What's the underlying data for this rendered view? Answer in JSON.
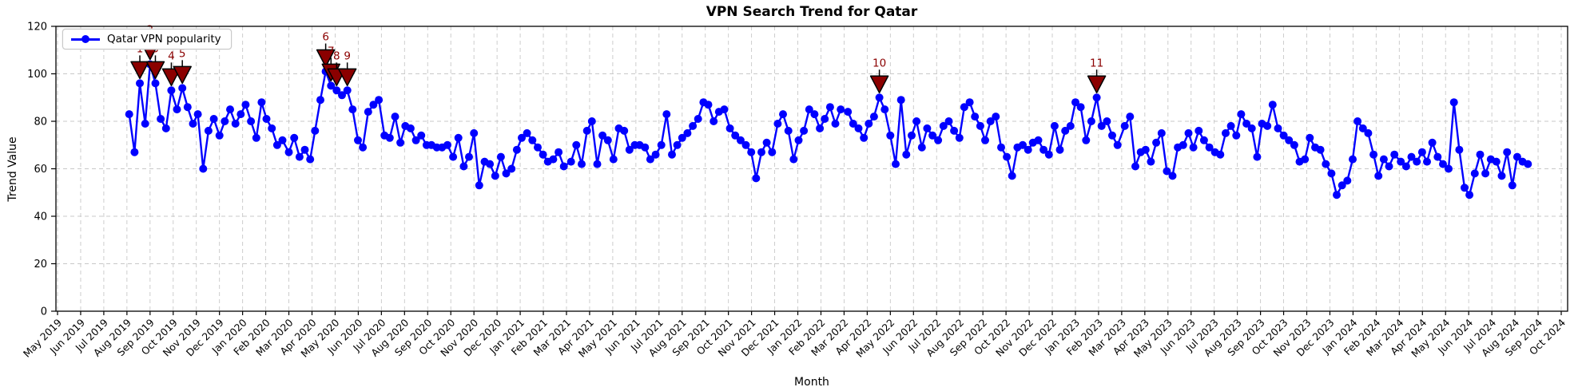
{
  "figure": {
    "title": "VPN Search Trend for Qatar",
    "xlabel": "Month",
    "ylabel": "Trend Value",
    "legend_label": "Qatar VPN popularity"
  },
  "chart_data": {
    "type": "line",
    "title": "VPN Search Trend for Qatar",
    "xlabel": "Month",
    "ylabel": "Trend Value",
    "ylim": [
      0,
      120
    ],
    "y_ticks": [
      0,
      20,
      40,
      60,
      80,
      100,
      120
    ],
    "grid": true,
    "legend_position": "upper-left",
    "x_tick_labels": [
      "May 2019",
      "Jun 2019",
      "Jul 2019",
      "Aug 2019",
      "Sep 2019",
      "Oct 2019",
      "Nov 2019",
      "Dec 2019",
      "Jan 2020",
      "Feb 2020",
      "Mar 2020",
      "Apr 2020",
      "May 2020",
      "Jun 2020",
      "Jul 2020",
      "Aug 2020",
      "Sep 2020",
      "Oct 2020",
      "Nov 2020",
      "Dec 2020",
      "Jan 2021",
      "Feb 2021",
      "Mar 2021",
      "Apr 2021",
      "May 2021",
      "Jun 2021",
      "Jul 2021",
      "Aug 2021",
      "Sep 2021",
      "Oct 2021",
      "Nov 2021",
      "Dec 2021",
      "Jan 2022",
      "Feb 2022",
      "Mar 2022",
      "Apr 2022",
      "May 2022",
      "Jun 2022",
      "Jul 2022",
      "Aug 2022",
      "Sep 2022",
      "Oct 2022",
      "Nov 2022",
      "Dec 2022",
      "Jan 2023",
      "Feb 2023",
      "Mar 2023",
      "Apr 2023",
      "May 2023",
      "Jun 2023",
      "Jul 2023",
      "Aug 2023",
      "Sep 2023",
      "Oct 2023",
      "Nov 2023",
      "Dec 2023",
      "Jan 2024",
      "Feb 2024",
      "Mar 2024",
      "Apr 2024",
      "May 2024",
      "Jun 2024",
      "Jul 2024",
      "Aug 2024",
      "Sep 2024",
      "Oct 2024"
    ],
    "series": [
      {
        "name": "Qatar VPN popularity",
        "color": "#0000ff",
        "marker": "circle",
        "start_week": "2019-08-04",
        "interval_days": 7,
        "values": [
          83,
          67,
          96,
          79,
          104,
          96,
          81,
          77,
          93,
          85,
          94,
          86,
          79,
          83,
          60,
          76,
          81,
          74,
          80,
          85,
          79,
          83,
          87,
          80,
          73,
          88,
          81,
          77,
          70,
          72,
          67,
          73,
          65,
          68,
          64,
          76,
          89,
          101,
          95,
          93,
          91,
          93,
          85,
          72,
          69,
          84,
          87,
          89,
          74,
          73,
          82,
          71,
          78,
          77,
          72,
          74,
          70,
          70,
          69,
          69,
          70,
          65,
          73,
          61,
          65,
          75,
          53,
          63,
          62,
          57,
          65,
          58,
          60,
          68,
          73,
          75,
          72,
          69,
          66,
          63,
          64,
          67,
          61,
          63,
          70,
          62,
          76,
          80,
          62,
          74,
          72,
          64,
          77,
          76,
          68,
          70,
          70,
          69,
          64,
          66,
          70,
          83,
          66,
          70,
          73,
          75,
          78,
          81,
          88,
          87,
          80,
          84,
          85,
          77,
          74,
          72,
          70,
          67,
          56,
          67,
          71,
          67,
          79,
          83,
          76,
          64,
          72,
          76,
          85,
          83,
          77,
          81,
          86,
          79,
          85,
          84,
          79,
          77,
          73,
          79,
          82,
          90,
          85,
          74,
          62,
          89,
          66,
          74,
          80,
          69,
          77,
          74,
          72,
          78,
          80,
          76,
          73,
          86,
          88,
          82,
          78,
          72,
          80,
          82,
          69,
          65,
          57,
          69,
          70,
          68,
          71,
          72,
          68,
          66,
          78,
          68,
          76,
          78,
          88,
          86,
          72,
          80,
          90,
          78,
          80,
          74,
          70,
          78,
          82,
          61,
          67,
          68,
          63,
          71,
          75,
          59,
          57,
          69,
          70,
          75,
          69,
          76,
          72,
          69,
          67,
          66,
          75,
          78,
          74,
          83,
          79,
          77,
          65,
          79,
          78,
          87,
          77,
          74,
          72,
          70,
          63,
          64,
          73,
          69,
          68,
          62,
          58,
          49,
          53,
          55,
          64,
          80,
          77,
          75,
          66,
          57,
          64,
          61,
          66,
          63,
          61,
          65,
          63,
          67,
          63,
          71,
          65,
          62,
          60,
          88,
          68,
          52,
          49,
          58,
          66,
          58,
          64,
          63,
          57,
          67,
          53,
          65,
          63,
          62
        ]
      }
    ],
    "annotations": [
      {
        "label": "1",
        "week_index": 2,
        "value": 96
      },
      {
        "label": "2",
        "week_index": 4,
        "value": 104
      },
      {
        "label": "3",
        "week_index": 5,
        "value": 96
      },
      {
        "label": "4",
        "week_index": 8,
        "value": 93
      },
      {
        "label": "5",
        "week_index": 10,
        "value": 94
      },
      {
        "label": "6",
        "week_index": 37,
        "value": 101
      },
      {
        "label": "7",
        "week_index": 38,
        "value": 95
      },
      {
        "label": "8",
        "week_index": 39,
        "value": 93
      },
      {
        "label": "9",
        "week_index": 41,
        "value": 93
      },
      {
        "label": "10",
        "week_index": 141,
        "value": 90
      },
      {
        "label": "11",
        "week_index": 182,
        "value": 90
      }
    ],
    "annotation_style": {
      "marker": "triangle-down",
      "fill": "#8b0000",
      "edge": "#000000",
      "text_color": "#8b0000"
    },
    "colors": {
      "line": "#0000ff",
      "grid": "#c8c8c8",
      "axis": "#000000",
      "background": "#ffffff"
    }
  }
}
